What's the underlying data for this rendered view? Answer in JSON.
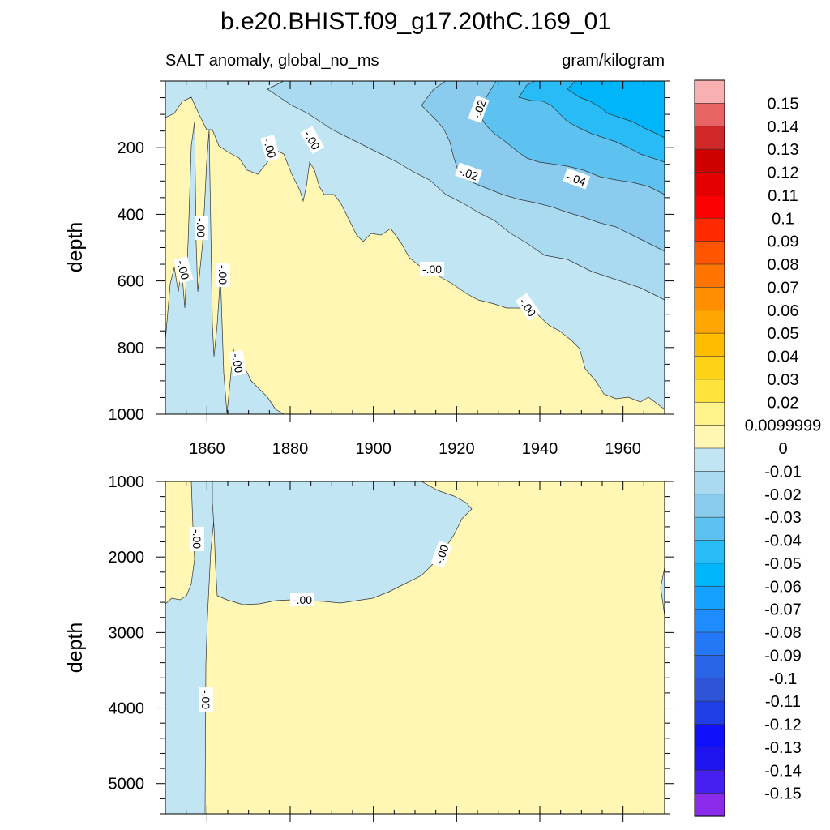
{
  "title": "b.e20.BHIST.f09_g17.20thC.169_01",
  "chart_data": {
    "type": "heatmap",
    "variable_label": "SALT anomaly, global_no_ms",
    "units": "gram/kilogram",
    "xlim": [
      1850,
      1970
    ],
    "x_ticks": [
      "1860",
      "1880",
      "1900",
      "1920",
      "1940",
      "1960"
    ],
    "upper_panel": {
      "ylabel": "depth",
      "ylim": [
        0,
        1000
      ],
      "y_ticks": [
        "200",
        "400",
        "600",
        "800",
        "1000"
      ],
      "contour_labels": [
        "-.02",
        "-.02",
        "-.04",
        "-.00",
        "-.00",
        "-.00",
        "-.00",
        "-.00",
        "-.00",
        "-.00",
        "-.00"
      ]
    },
    "lower_panel": {
      "ylabel": "depth",
      "ylim": [
        1000,
        5400
      ],
      "y_ticks": [
        "1000",
        "2000",
        "3000",
        "4000",
        "5000"
      ],
      "contour_labels": [
        "-.00",
        "-.00",
        "-.00",
        "-.00"
      ]
    },
    "colorbar": {
      "levels": [
        "0.15",
        "0.14",
        "0.13",
        "0.12",
        "0.11",
        "0.1",
        "0.09",
        "0.08",
        "0.07",
        "0.06",
        "0.05",
        "0.04",
        "0.03",
        "0.02",
        "0.0099999",
        "0",
        "-0.01",
        "-0.02",
        "-0.03",
        "-0.04",
        "-0.05",
        "-0.06",
        "-0.07",
        "-0.08",
        "-0.09",
        "-0.1",
        "-0.11",
        "-0.12",
        "-0.13",
        "-0.14",
        "-0.15"
      ],
      "colors": [
        "#f8b0b0",
        "#e86565",
        "#d02828",
        "#cf0000",
        "#e40000",
        "#fa0000",
        "#ff2a00",
        "#ff5500",
        "#ff7500",
        "#ff8e00",
        "#ffa600",
        "#ffbd00",
        "#ffd21a",
        "#ffe33d",
        "#fff28a",
        "#fff7b3",
        "#c2e5f4",
        "#a9daf0",
        "#8bcbed",
        "#5ec2f0",
        "#28bbf5",
        "#00b5fa",
        "#13a0ff",
        "#1e8cff",
        "#2478f5",
        "#2a65e8",
        "#2e55d8",
        "#1f3ee6",
        "#1010fa",
        "#1e14f0",
        "#4620ee",
        "#8a2be9"
      ]
    }
  }
}
